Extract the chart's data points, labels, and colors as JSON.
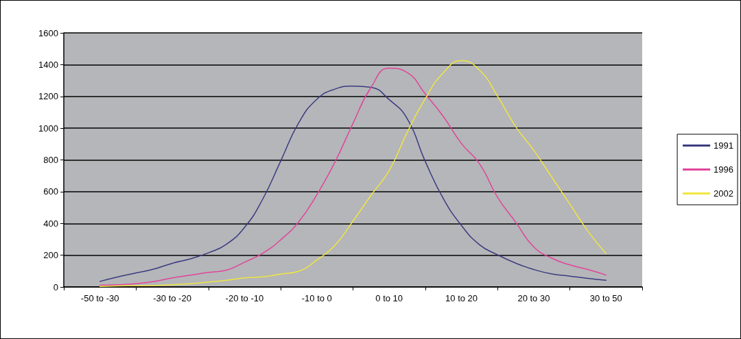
{
  "chart_data": {
    "type": "line",
    "categories": [
      null,
      null,
      "-50 to -30",
      null,
      null,
      null,
      "-30 to -20",
      null,
      null,
      null,
      "-20 to -10",
      null,
      null,
      null,
      "-10 to 0",
      null,
      null,
      null,
      "0 to 10",
      null,
      null,
      null,
      "10 to 20",
      null,
      null,
      null,
      "20 to 30",
      null,
      null,
      null,
      "30 to 50",
      null,
      null
    ],
    "series": [
      {
        "name": "1991",
        "color": "#3b3b80",
        "values": [
          null,
          null,
          35,
          64,
          88,
          113,
          149,
          177,
          215,
          269,
          375,
          552,
          793,
          1034,
          1182,
          1246,
          1265,
          1257,
          1180,
          1059,
          790,
          556,
          387,
          266,
          202,
          150,
          110,
          82,
          68,
          54,
          42,
          null,
          null
        ]
      },
      {
        "name": "1996",
        "color": "#e2449a",
        "values": [
          null,
          null,
          11,
          14,
          21,
          35,
          57,
          74,
          92,
          106,
          156,
          212,
          297,
          411,
          581,
          786,
          1030,
          1257,
          1378,
          1350,
          1215,
          1073,
          903,
          776,
          564,
          408,
          252,
          181,
          139,
          110,
          75,
          null,
          null
        ]
      },
      {
        "name": "2002",
        "color": "#f0e640",
        "values": [
          null,
          null,
          3,
          6,
          8,
          10,
          14,
          21,
          31,
          42,
          57,
          64,
          81,
          99,
          170,
          262,
          415,
          578,
          733,
          974,
          1187,
          1349,
          1425,
          1365,
          1201,
          1010,
          861,
          691,
          521,
          351,
          210,
          null,
          null
        ]
      }
    ],
    "ylim": [
      0,
      1600
    ],
    "yticks": [
      0,
      200,
      400,
      600,
      800,
      1000,
      1200,
      1400,
      1600
    ],
    "grid": "y",
    "legend": "right",
    "marker": "none",
    "line_style": "solid"
  }
}
